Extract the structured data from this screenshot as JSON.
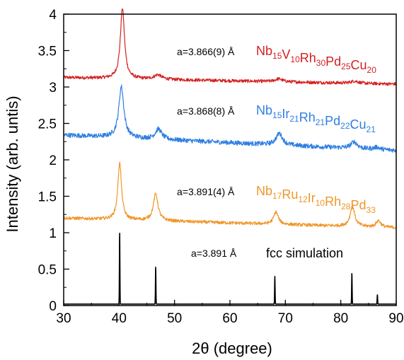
{
  "chart_data": {
    "type": "line",
    "title": "",
    "xlabel": "2θ (degree)",
    "ylabel": "Intensity (arb. untis)",
    "xlim": [
      30,
      90
    ],
    "ylim": [
      0,
      4
    ],
    "x_ticks": [
      "30",
      "40",
      "50",
      "60",
      "70",
      "80",
      "90"
    ],
    "y_ticks": [
      "0",
      "0.5",
      "1",
      "1.5",
      "2",
      "2.5",
      "3",
      "3.5",
      "4"
    ],
    "grid": false,
    "legend": "none",
    "series": [
      {
        "color": "#d42020",
        "baseline": 3.13,
        "noise": 0.022,
        "slope": -0.0015,
        "peaks": [
          {
            "x": 40.6,
            "h": 0.97,
            "w": 0.45
          },
          {
            "x": 47.0,
            "h": 0.06,
            "w": 0.8
          },
          {
            "x": 68.8,
            "h": 0.04,
            "w": 0.8
          },
          {
            "x": 82.5,
            "h": 0.03,
            "w": 0.8
          }
        ],
        "lattice_label": "a=3.866(9) Å",
        "composition": [
          [
            "Nb",
            "15"
          ],
          [
            "V",
            "10"
          ],
          [
            "Rh",
            "30"
          ],
          [
            "Pd",
            "25"
          ],
          [
            "Cu",
            "20"
          ]
        ]
      },
      {
        "color": "#2f7fe0",
        "baseline": 2.34,
        "noise": 0.032,
        "slope": -0.0035,
        "peaks": [
          {
            "x": 40.4,
            "h": 0.7,
            "w": 0.55
          },
          {
            "x": 47.1,
            "h": 0.14,
            "w": 0.7
          },
          {
            "x": 68.9,
            "h": 0.16,
            "w": 0.7
          },
          {
            "x": 82.4,
            "h": 0.09,
            "w": 0.7
          },
          {
            "x": 86.5,
            "h": 0.03,
            "w": 0.6
          }
        ],
        "lattice_label": "a=3.868(8) Å",
        "composition": [
          [
            "Nb",
            "15"
          ],
          [
            "Ir",
            "21"
          ],
          [
            "Rh",
            "21"
          ],
          [
            "Pd",
            "22"
          ],
          [
            "Cu",
            "21"
          ]
        ]
      },
      {
        "color": "#f0962a",
        "baseline": 1.2,
        "noise": 0.022,
        "slope": -0.0022,
        "peaks": [
          {
            "x": 40.1,
            "h": 0.78,
            "w": 0.4
          },
          {
            "x": 46.6,
            "h": 0.37,
            "w": 0.5
          },
          {
            "x": 68.3,
            "h": 0.17,
            "w": 0.5
          },
          {
            "x": 82.1,
            "h": 0.28,
            "w": 0.5
          },
          {
            "x": 86.8,
            "h": 0.09,
            "w": 0.5
          }
        ],
        "lattice_label": "a=3.891(4) Å",
        "composition": [
          [
            "Nb",
            "17"
          ],
          [
            "Ru",
            "12"
          ],
          [
            "Ir",
            "10"
          ],
          [
            "Rh",
            "28"
          ],
          [
            "Pd",
            "33"
          ]
        ]
      },
      {
        "color": "#000000",
        "baseline": 0.02,
        "noise": 0,
        "slope": 0,
        "peaks": [
          {
            "x": 40.1,
            "h": 1.0,
            "w": 0.12
          },
          {
            "x": 46.6,
            "h": 0.52,
            "w": 0.12
          },
          {
            "x": 68.1,
            "h": 0.38,
            "w": 0.12
          },
          {
            "x": 82.0,
            "h": 0.43,
            "w": 0.12
          },
          {
            "x": 86.6,
            "h": 0.13,
            "w": 0.12
          }
        ],
        "lattice_label": "a=3.891 Å",
        "simulation_label": "fcc simulation"
      }
    ]
  }
}
